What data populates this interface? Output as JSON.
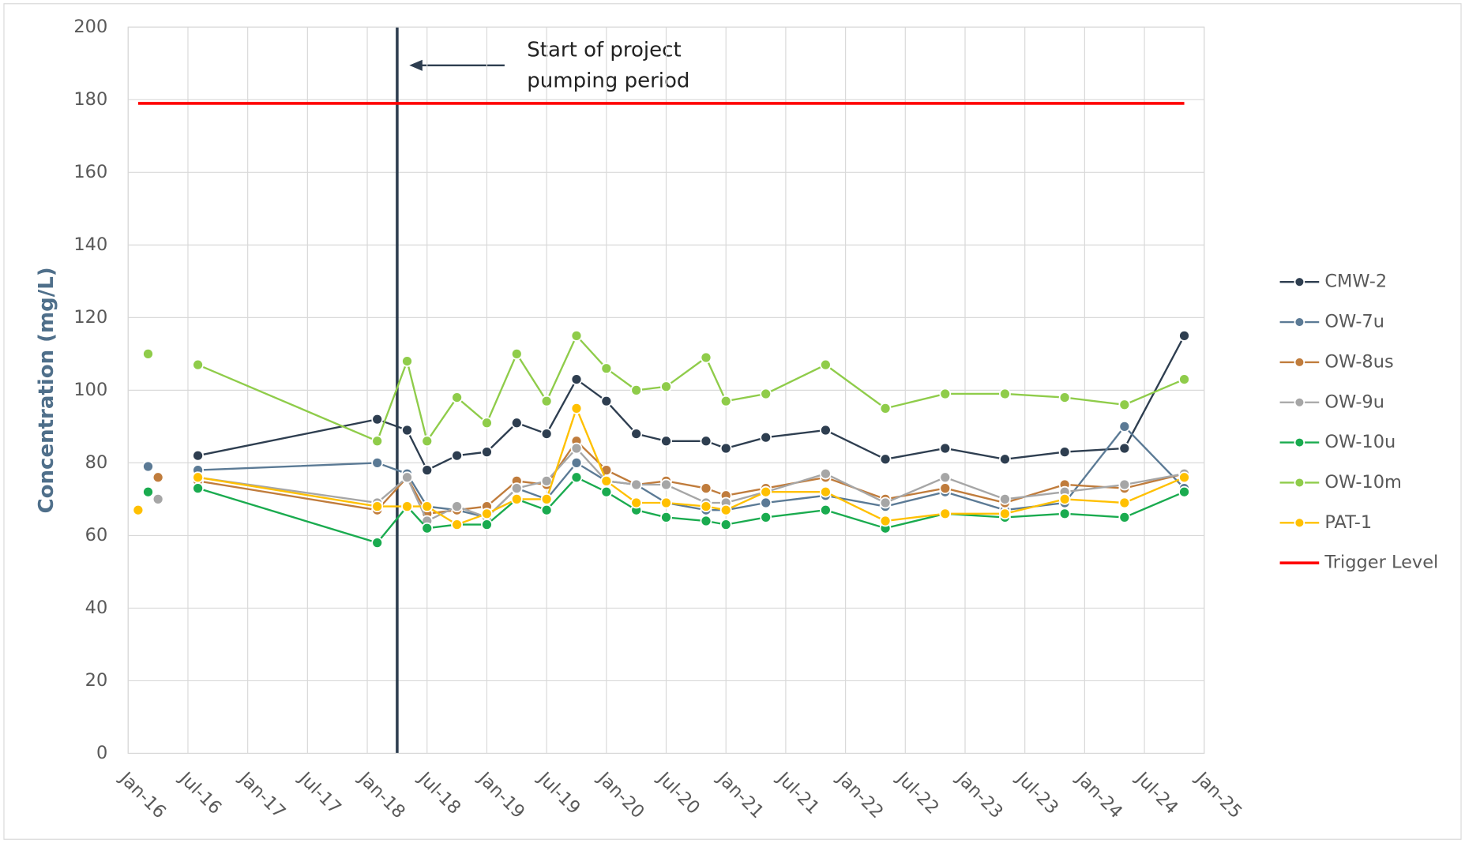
{
  "chart_data": {
    "type": "line",
    "y_label": "Concentration (mg/L)",
    "annotation": [
      "Start of project",
      "pumping period"
    ],
    "pumping_start": "2018-04",
    "xlim": [
      "2016-01",
      "2025-01"
    ],
    "xticks": [
      {
        "value": "2016-01",
        "label": "Jan-16"
      },
      {
        "value": "2016-07",
        "label": "Jul-16"
      },
      {
        "value": "2017-01",
        "label": "Jan-17"
      },
      {
        "value": "2017-07",
        "label": "Jul-17"
      },
      {
        "value": "2018-01",
        "label": "Jan-18"
      },
      {
        "value": "2018-07",
        "label": "Jul-18"
      },
      {
        "value": "2019-01",
        "label": "Jan-19"
      },
      {
        "value": "2019-07",
        "label": "Jul-19"
      },
      {
        "value": "2020-01",
        "label": "Jan-20"
      },
      {
        "value": "2020-07",
        "label": "Jul-20"
      },
      {
        "value": "2021-01",
        "label": "Jan-21"
      },
      {
        "value": "2021-07",
        "label": "Jul-21"
      },
      {
        "value": "2022-01",
        "label": "Jan-22"
      },
      {
        "value": "2022-07",
        "label": "Jul-22"
      },
      {
        "value": "2023-01",
        "label": "Jan-23"
      },
      {
        "value": "2023-07",
        "label": "Jul-23"
      },
      {
        "value": "2024-01",
        "label": "Jan-24"
      },
      {
        "value": "2024-07",
        "label": "Jul-24"
      },
      {
        "value": "2025-01",
        "label": "Jan-25"
      }
    ],
    "ylim": [
      0,
      200
    ],
    "yticks": [
      0,
      20,
      40,
      60,
      80,
      100,
      120,
      140,
      160,
      180,
      200
    ],
    "grid": true,
    "x": [
      "2016-08",
      "2018-02",
      "2018-05",
      "2018-07",
      "2018-10",
      "2019-01",
      "2019-04",
      "2019-07",
      "2019-10",
      "2020-01",
      "2020-04",
      "2020-07",
      "2020-11",
      "2021-01",
      "2021-05",
      "2021-11",
      "2022-05",
      "2022-11",
      "2023-05",
      "2023-11",
      "2024-05",
      "2024-11"
    ],
    "series": [
      {
        "name": "CMW-2",
        "color": "#2e3e50",
        "values": [
          82,
          92,
          89,
          78,
          82,
          83,
          91,
          88,
          103,
          97,
          88,
          86,
          86,
          84,
          87,
          89,
          81,
          84,
          81,
          83,
          84,
          115
        ]
      },
      {
        "name": "OW-7u",
        "color": "#5b7a95",
        "first_reading": {
          "x": "2016-03",
          "value": 79
        },
        "values": [
          78,
          80,
          77,
          68,
          67,
          65,
          73,
          70,
          80,
          75,
          74,
          69,
          67,
          67,
          69,
          71,
          68,
          72,
          67,
          69,
          90,
          73
        ]
      },
      {
        "name": "OW-8us",
        "color": "#c07c3c",
        "first_reading": {
          "x": "2016-04",
          "value": 76
        },
        "values": [
          75,
          67,
          76,
          66,
          67,
          68,
          75,
          74,
          86,
          78,
          74,
          75,
          73,
          71,
          73,
          76,
          70,
          73,
          69,
          74,
          73,
          77
        ]
      },
      {
        "name": "OW-9u",
        "color": "#a6a6a6",
        "first_reading": {
          "x": "2016-04",
          "value": 70
        },
        "values": [
          76,
          69,
          76,
          64,
          68,
          65,
          73,
          75,
          84,
          75,
          74,
          74,
          69,
          69,
          72,
          77,
          69,
          76,
          70,
          72,
          74,
          77
        ]
      },
      {
        "name": "OW-10u",
        "color": "#1aab4f",
        "first_reading": {
          "x": "2016-03",
          "value": 72
        },
        "values": [
          73,
          58,
          68,
          62,
          63,
          63,
          70,
          67,
          76,
          72,
          67,
          65,
          64,
          63,
          65,
          67,
          62,
          66,
          65,
          66,
          65,
          72
        ]
      },
      {
        "name": "OW-10m",
        "color": "#8fcc4a",
        "first_reading": {
          "x": "2016-03",
          "value": 110
        },
        "values": [
          107,
          86,
          108,
          86,
          98,
          91,
          110,
          97,
          115,
          106,
          100,
          101,
          109,
          97,
          99,
          107,
          95,
          99,
          99,
          98,
          96,
          103
        ]
      },
      {
        "name": "PAT-1",
        "color": "#ffc000",
        "first_reading": {
          "x": "2016-02",
          "value": 67
        },
        "values": [
          76,
          68,
          68,
          68,
          63,
          66,
          70,
          70,
          95,
          75,
          69,
          69,
          68,
          67,
          72,
          72,
          64,
          66,
          66,
          70,
          69,
          76
        ]
      }
    ],
    "trigger": {
      "name": "Trigger Level",
      "color": "#ff0000",
      "value": 179,
      "x": [
        "2016-02",
        "2024-11"
      ]
    }
  }
}
